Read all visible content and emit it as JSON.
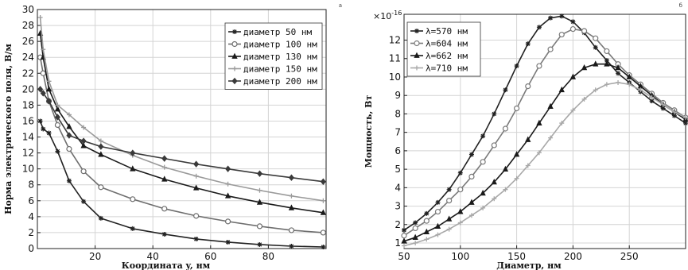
{
  "chart_data": [
    {
      "type": "line",
      "corner_mark": "а",
      "xlabel": "Координата y, нм",
      "ylabel": "Норма электрического поля, В/м",
      "xlim": [
        0,
        100
      ],
      "ylim": [
        0,
        30
      ],
      "xticks": [
        20,
        40,
        60,
        80
      ],
      "yticks": [
        0,
        2,
        4,
        6,
        8,
        10,
        12,
        14,
        16,
        18,
        20,
        22,
        24,
        26,
        28,
        30
      ],
      "grid": true,
      "legend_position": "top-right",
      "series": [
        {
          "name": "диаметр 50 нм",
          "color": "#222222",
          "marker": "star",
          "x": [
            1,
            2,
            4,
            7,
            11,
            16,
            22,
            33,
            44,
            55,
            66,
            77,
            88,
            99
          ],
          "y": [
            16,
            15,
            14.5,
            12.2,
            8.5,
            5.9,
            3.8,
            2.5,
            1.8,
            1.2,
            0.8,
            0.5,
            0.3,
            0.2
          ]
        },
        {
          "name": "диаметр 100 нм",
          "color": "#6e6e6e",
          "marker": "circle",
          "x": [
            1,
            2,
            4,
            7,
            11,
            16,
            22,
            33,
            44,
            55,
            66,
            77,
            88,
            99
          ],
          "y": [
            24,
            22,
            18.5,
            15.5,
            12.5,
            9.7,
            7.7,
            6.2,
            5.0,
            4.1,
            3.4,
            2.8,
            2.3,
            2.0
          ]
        },
        {
          "name": "диаметр 130 нм",
          "color": "#1a1a1a",
          "marker": "triangle",
          "x": [
            1,
            2,
            4,
            7,
            11,
            16,
            22,
            33,
            44,
            55,
            66,
            77,
            88,
            99
          ],
          "y": [
            27,
            24,
            20,
            17.5,
            15.3,
            12.9,
            11.8,
            10.0,
            8.7,
            7.6,
            6.6,
            5.8,
            5.1,
            4.5
          ]
        },
        {
          "name": "диаметр 150 нм",
          "color": "#9a9a9a",
          "marker": "cross",
          "x": [
            1,
            2,
            4,
            7,
            11,
            16,
            22,
            33,
            44,
            55,
            66,
            77,
            88,
            99
          ],
          "y": [
            29,
            25,
            21,
            18,
            16.8,
            15.2,
            13.5,
            11.7,
            10.2,
            9.1,
            8.1,
            7.3,
            6.6,
            6.0
          ]
        },
        {
          "name": "диаметр 200 нм",
          "color": "#3a3a3a",
          "marker": "diamond",
          "x": [
            1,
            2,
            4,
            7,
            11,
            16,
            22,
            33,
            44,
            55,
            66,
            77,
            88,
            99
          ],
          "y": [
            20,
            19.5,
            18.5,
            16.5,
            14.2,
            13.5,
            12.8,
            12.0,
            11.3,
            10.6,
            10.0,
            9.4,
            8.9,
            8.4
          ]
        }
      ]
    },
    {
      "type": "line",
      "corner_mark": "б",
      "multiplier": "×10",
      "multiplier_exp": "-16",
      "xlabel": "Диаметр, нм",
      "ylabel": "Мощность, Вт",
      "xlim": [
        50,
        300
      ],
      "ylim": [
        0.7,
        13.4
      ],
      "xticks": [
        50,
        100,
        150,
        200,
        250
      ],
      "yticks": [
        1,
        2,
        3,
        4,
        5,
        6,
        7,
        8,
        9,
        10,
        11,
        12
      ],
      "grid": true,
      "legend_position": "top-left",
      "series": [
        {
          "name": "λ=570 нм",
          "color": "#222222",
          "marker": "star",
          "x": [
            50,
            60,
            70,
            80,
            90,
            100,
            110,
            120,
            130,
            140,
            150,
            160,
            170,
            180,
            190,
            200,
            210,
            220,
            230,
            240,
            250,
            260,
            270,
            280,
            290,
            300
          ],
          "y": [
            1.7,
            2.1,
            2.6,
            3.2,
            3.9,
            4.8,
            5.8,
            6.8,
            8.0,
            9.3,
            10.6,
            11.8,
            12.7,
            13.2,
            13.3,
            13.0,
            12.4,
            11.6,
            10.9,
            10.2,
            9.7,
            9.2,
            8.7,
            8.3,
            7.9,
            7.5
          ]
        },
        {
          "name": "λ=604 нм",
          "color": "#7a7a7a",
          "marker": "circle",
          "x": [
            50,
            60,
            70,
            80,
            90,
            100,
            110,
            120,
            130,
            140,
            150,
            160,
            170,
            180,
            190,
            200,
            210,
            220,
            230,
            240,
            250,
            260,
            270,
            280,
            290,
            300
          ],
          "y": [
            1.4,
            1.8,
            2.2,
            2.7,
            3.3,
            3.9,
            4.6,
            5.4,
            6.3,
            7.2,
            8.3,
            9.5,
            10.6,
            11.5,
            12.3,
            12.6,
            12.5,
            12.1,
            11.4,
            10.7,
            10.1,
            9.6,
            9.1,
            8.6,
            8.2,
            7.8
          ]
        },
        {
          "name": "λ=662 нм",
          "color": "#1a1a1a",
          "marker": "triangle",
          "x": [
            50,
            60,
            70,
            80,
            90,
            100,
            110,
            120,
            130,
            140,
            150,
            160,
            170,
            180,
            190,
            200,
            210,
            220,
            230,
            240,
            250,
            260,
            270,
            280,
            290,
            300
          ],
          "y": [
            1.1,
            1.3,
            1.6,
            1.9,
            2.3,
            2.7,
            3.2,
            3.7,
            4.3,
            5.0,
            5.8,
            6.6,
            7.5,
            8.4,
            9.3,
            10.0,
            10.5,
            10.7,
            10.7,
            10.5,
            10.0,
            9.5,
            9.0,
            8.5,
            8.1,
            7.7
          ]
        },
        {
          "name": "λ=710 нм",
          "color": "#a8a8a8",
          "marker": "cross",
          "x": [
            50,
            60,
            70,
            80,
            90,
            100,
            110,
            120,
            130,
            140,
            150,
            160,
            170,
            180,
            190,
            200,
            210,
            220,
            230,
            240,
            250,
            260,
            270,
            280,
            290,
            300
          ],
          "y": [
            0.85,
            1.0,
            1.2,
            1.45,
            1.75,
            2.1,
            2.5,
            2.9,
            3.4,
            3.9,
            4.5,
            5.2,
            5.9,
            6.7,
            7.5,
            8.2,
            8.8,
            9.3,
            9.6,
            9.7,
            9.6,
            9.3,
            8.9,
            8.5,
            8.1,
            7.8
          ]
        }
      ]
    }
  ]
}
